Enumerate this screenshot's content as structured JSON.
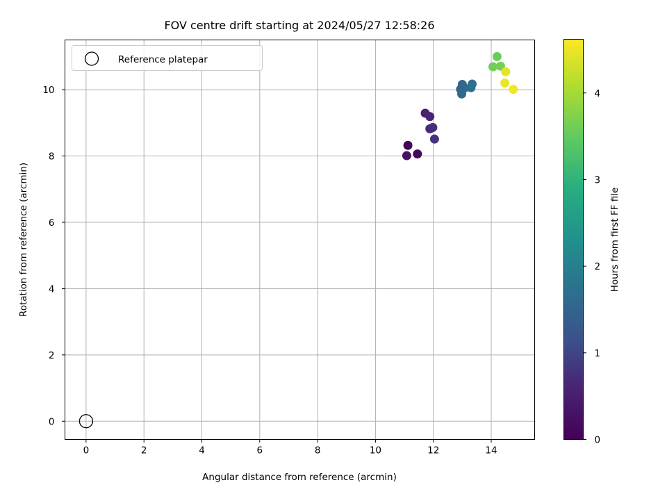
{
  "chart_data": {
    "type": "scatter",
    "title": "FOV centre drift starting at 2024/05/27 12:58:26",
    "xlabel": "Angular distance from reference (arcmin)",
    "ylabel": "Rotation from reference (arcmin)",
    "xlim": [
      -0.73,
      15.5
    ],
    "ylim": [
      -0.55,
      11.5
    ],
    "xticks": [
      0,
      2,
      4,
      6,
      8,
      10,
      12,
      14
    ],
    "yticks": [
      0,
      2,
      4,
      6,
      8,
      10
    ],
    "grid": true,
    "legend": {
      "placement": "top-left",
      "entries": [
        "Reference platepar"
      ]
    },
    "reference_point": {
      "x": 0,
      "y": 0,
      "marker": "hollow-circle"
    },
    "points": [
      {
        "x": 11.12,
        "y": 8.32,
        "hours": 0.05
      },
      {
        "x": 11.45,
        "y": 8.06,
        "hours": 0.12
      },
      {
        "x": 11.08,
        "y": 8.01,
        "hours": 0.3
      },
      {
        "x": 11.72,
        "y": 9.29,
        "hours": 0.55
      },
      {
        "x": 11.88,
        "y": 9.19,
        "hours": 0.62
      },
      {
        "x": 11.88,
        "y": 8.82,
        "hours": 0.68
      },
      {
        "x": 11.98,
        "y": 8.86,
        "hours": 0.72
      },
      {
        "x": 12.04,
        "y": 8.51,
        "hours": 0.78
      },
      {
        "x": 12.94,
        "y": 10.01,
        "hours": 1.5
      },
      {
        "x": 13.0,
        "y": 10.16,
        "hours": 1.55
      },
      {
        "x": 12.98,
        "y": 9.87,
        "hours": 1.6
      },
      {
        "x": 13.08,
        "y": 10.05,
        "hours": 1.63
      },
      {
        "x": 13.3,
        "y": 10.06,
        "hours": 1.7
      },
      {
        "x": 13.34,
        "y": 10.17,
        "hours": 1.74
      },
      {
        "x": 14.2,
        "y": 11.0,
        "hours": 3.55
      },
      {
        "x": 14.06,
        "y": 10.69,
        "hours": 3.6
      },
      {
        "x": 14.32,
        "y": 10.71,
        "hours": 3.65
      },
      {
        "x": 14.5,
        "y": 10.54,
        "hours": 4.45
      },
      {
        "x": 14.47,
        "y": 10.2,
        "hours": 4.5
      },
      {
        "x": 14.76,
        "y": 10.01,
        "hours": 4.55
      }
    ],
    "colorbar": {
      "label": "Hours from first FF file",
      "colormap": "viridis",
      "range": [
        0,
        4.62
      ],
      "ticks": [
        0,
        1,
        2,
        3,
        4
      ]
    }
  }
}
